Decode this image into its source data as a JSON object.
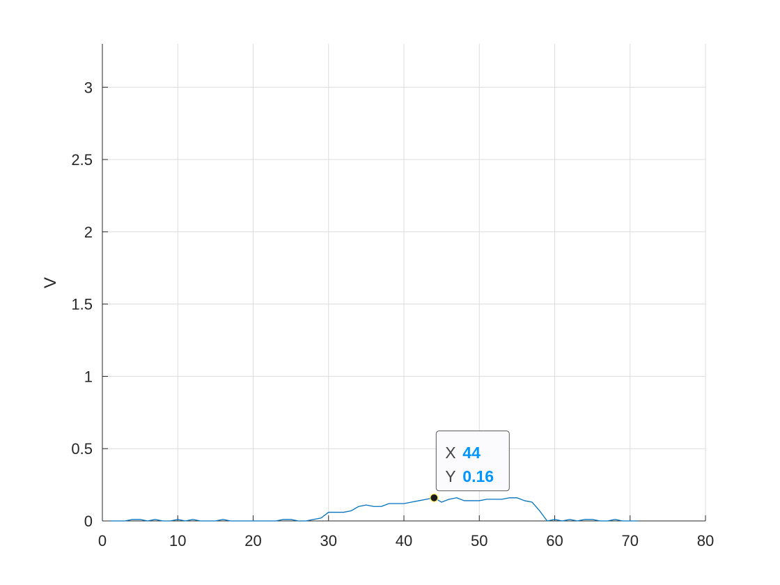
{
  "chart_data": {
    "type": "line",
    "title": "",
    "xlabel": "",
    "ylabel": "V",
    "xlim": [
      0,
      80
    ],
    "ylim": [
      0,
      3.3
    ],
    "grid": true,
    "xticks": [
      0,
      10,
      20,
      30,
      40,
      50,
      60,
      70,
      80
    ],
    "yticks": [
      0,
      0.5,
      1,
      1.5,
      2,
      2.5,
      3
    ],
    "ytick_labels": [
      "0",
      "0.5",
      "1",
      "1.5",
      "2",
      "2.5",
      "3"
    ],
    "series": [
      {
        "color": "#0072BD",
        "x": [
          1,
          2,
          3,
          4,
          5,
          6,
          7,
          8,
          9,
          10,
          11,
          12,
          13,
          14,
          15,
          16,
          17,
          18,
          19,
          20,
          21,
          22,
          23,
          24,
          25,
          26,
          27,
          28,
          29,
          30,
          31,
          32,
          33,
          34,
          35,
          36,
          37,
          38,
          39,
          40,
          41,
          42,
          43,
          44,
          45,
          46,
          47,
          48,
          49,
          50,
          51,
          52,
          53,
          54,
          55,
          56,
          57,
          58,
          59,
          60,
          61,
          62,
          63,
          64,
          65,
          66,
          67,
          68,
          69,
          70,
          71
        ],
        "y": [
          0,
          0,
          0,
          0.01,
          0.01,
          0,
          0.01,
          0,
          0,
          0.01,
          0,
          0.01,
          0,
          0,
          0,
          0.01,
          0,
          0,
          0,
          0,
          0,
          0,
          0,
          0.01,
          0.01,
          0,
          0,
          0.01,
          0.02,
          0.06,
          0.06,
          0.06,
          0.07,
          0.1,
          0.11,
          0.1,
          0.1,
          0.12,
          0.12,
          0.12,
          0.13,
          0.14,
          0.15,
          0.16,
          0.13,
          0.15,
          0.16,
          0.14,
          0.14,
          0.14,
          0.15,
          0.15,
          0.15,
          0.16,
          0.16,
          0.14,
          0.13,
          0.07,
          0,
          0.01,
          0,
          0.01,
          0,
          0.01,
          0.01,
          0,
          0,
          0.01,
          0,
          0,
          0
        ]
      }
    ],
    "datatip": {
      "x_label": "X",
      "x_value": "44",
      "y_label": "Y",
      "y_value": "0.16",
      "x": 44,
      "y": 0.16
    }
  },
  "colors": {
    "line": "#0072BD",
    "grid": "#dcdcdc",
    "axis": "#262626",
    "tip_value": "#0096ff",
    "tip_label": "#444444",
    "tip_bg": "#fbfbfd",
    "tip_border": "#555555"
  }
}
